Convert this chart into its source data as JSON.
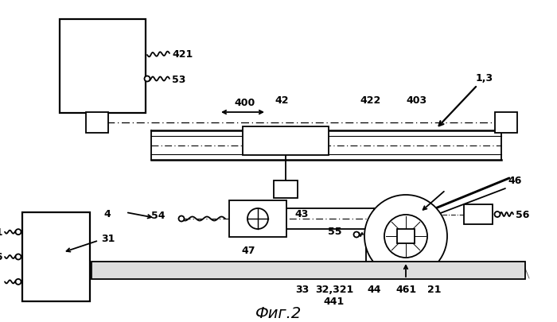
{
  "title": "Фиг.2",
  "bg": "#ffffff",
  "lc": "#000000",
  "figsize": [
    7.0,
    4.06
  ],
  "dpi": 100
}
